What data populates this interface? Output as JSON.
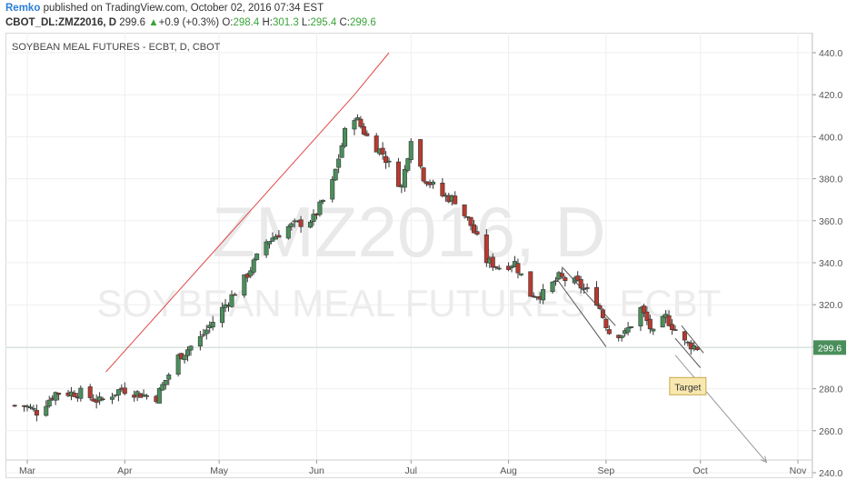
{
  "header": {
    "author": "Remko",
    "published_text": "published on TradingView.com, October 02, 2016 07:34 EST",
    "symbol": "CBOT_DL:ZMZ2016, D",
    "last": "299.6",
    "change_arrow": "▲",
    "change": "+0.9 (+0.3%)",
    "o_label": "O:",
    "o_value": "298.4",
    "h_label": "H:",
    "h_value": "301.3",
    "l_label": "L:",
    "l_value": "295.4",
    "c_label": "C:",
    "c_value": "299.6"
  },
  "colors": {
    "up": "#4a8f5b",
    "down": "#b83a2f",
    "trendline": "#e04a4a",
    "channel": "#555555",
    "price_label_bg": "#4a8f5b",
    "target_bg": "#f8e8b0"
  },
  "chart_data": {
    "type": "candlestick",
    "title": "SOYBEAN MEAL FUTURES - ECBT, D, CBOT",
    "watermark_line1": "ZMZ2016, D",
    "watermark_line2": "SOYBEAN MEAL FUTURES - ECBT",
    "x_tick_labels": [
      "Mar",
      "Apr",
      "May",
      "Jun",
      "Jul",
      "Aug",
      "Sep",
      "Oct",
      "Nov"
    ],
    "y_tick_labels": [
      "240.0",
      "260.0",
      "280.0",
      "300.0",
      "320.0",
      "340.0",
      "360.0",
      "380.0",
      "400.0",
      "420.0",
      "440.0"
    ],
    "y_range": [
      240,
      440
    ],
    "current_price": 299.6,
    "current_price_label": "299.6",
    "close_path": [
      {
        "date": "2016-02-29",
        "close": 272
      },
      {
        "date": "2016-03-04",
        "close": 269
      },
      {
        "date": "2016-03-10",
        "close": 278
      },
      {
        "date": "2016-03-18",
        "close": 278
      },
      {
        "date": "2016-03-24",
        "close": 274
      },
      {
        "date": "2016-03-31",
        "close": 280
      },
      {
        "date": "2016-04-07",
        "close": 277
      },
      {
        "date": "2016-04-11",
        "close": 276
      },
      {
        "date": "2016-04-18",
        "close": 295
      },
      {
        "date": "2016-04-25",
        "close": 304
      },
      {
        "date": "2016-05-02",
        "close": 318
      },
      {
        "date": "2016-05-09",
        "close": 332
      },
      {
        "date": "2016-05-16",
        "close": 350
      },
      {
        "date": "2016-05-23",
        "close": 357
      },
      {
        "date": "2016-05-31",
        "close": 361
      },
      {
        "date": "2016-06-06",
        "close": 378
      },
      {
        "date": "2016-06-10",
        "close": 402
      },
      {
        "date": "2016-06-13",
        "close": 410
      },
      {
        "date": "2016-06-17",
        "close": 400
      },
      {
        "date": "2016-06-22",
        "close": 392
      },
      {
        "date": "2016-06-28",
        "close": 376
      },
      {
        "date": "2016-07-01",
        "close": 400
      },
      {
        "date": "2016-07-05",
        "close": 381
      },
      {
        "date": "2016-07-11",
        "close": 372
      },
      {
        "date": "2016-07-15",
        "close": 370
      },
      {
        "date": "2016-07-20",
        "close": 358
      },
      {
        "date": "2016-07-25",
        "close": 341
      },
      {
        "date": "2016-07-29",
        "close": 338
      },
      {
        "date": "2016-08-03",
        "close": 340
      },
      {
        "date": "2016-08-08",
        "close": 325
      },
      {
        "date": "2016-08-12",
        "close": 325
      },
      {
        "date": "2016-08-17",
        "close": 333
      },
      {
        "date": "2016-08-23",
        "close": 330
      },
      {
        "date": "2016-08-29",
        "close": 322
      },
      {
        "date": "2016-09-02",
        "close": 307
      },
      {
        "date": "2016-09-07",
        "close": 306
      },
      {
        "date": "2016-09-12",
        "close": 318
      },
      {
        "date": "2016-09-16",
        "close": 306
      },
      {
        "date": "2016-09-20",
        "close": 314
      },
      {
        "date": "2016-09-26",
        "close": 302
      },
      {
        "date": "2016-09-30",
        "close": 299.6
      }
    ],
    "annotations": [
      {
        "type": "trendline",
        "from": {
          "date": "2016-03-26",
          "value": 288
        },
        "to": {
          "date": "2016-06-13",
          "value": 420
        }
      },
      {
        "type": "trendline",
        "from": {
          "date": "2016-06-13",
          "value": 420
        },
        "to": {
          "date": "2016-06-24",
          "value": 440
        }
      },
      {
        "type": "channel_line",
        "from": {
          "date": "2016-08-18",
          "value": 338
        },
        "to": {
          "date": "2016-09-04",
          "value": 310
        }
      },
      {
        "type": "channel_line",
        "from": {
          "date": "2016-08-16",
          "value": 333
        },
        "to": {
          "date": "2016-09-01",
          "value": 300
        }
      },
      {
        "type": "channel_line",
        "from": {
          "date": "2016-09-25",
          "value": 310
        },
        "to": {
          "date": "2016-10-02",
          "value": 297
        }
      },
      {
        "type": "channel_line",
        "from": {
          "date": "2016-09-23",
          "value": 304
        },
        "to": {
          "date": "2016-10-01",
          "value": 290
        }
      },
      {
        "type": "arrow",
        "from": {
          "date": "2016-09-23",
          "value": 296
        },
        "to": {
          "date": "2016-10-22",
          "value": 245
        }
      },
      {
        "type": "label",
        "text": "Target",
        "date": "2016-09-27",
        "value": 281
      }
    ]
  }
}
